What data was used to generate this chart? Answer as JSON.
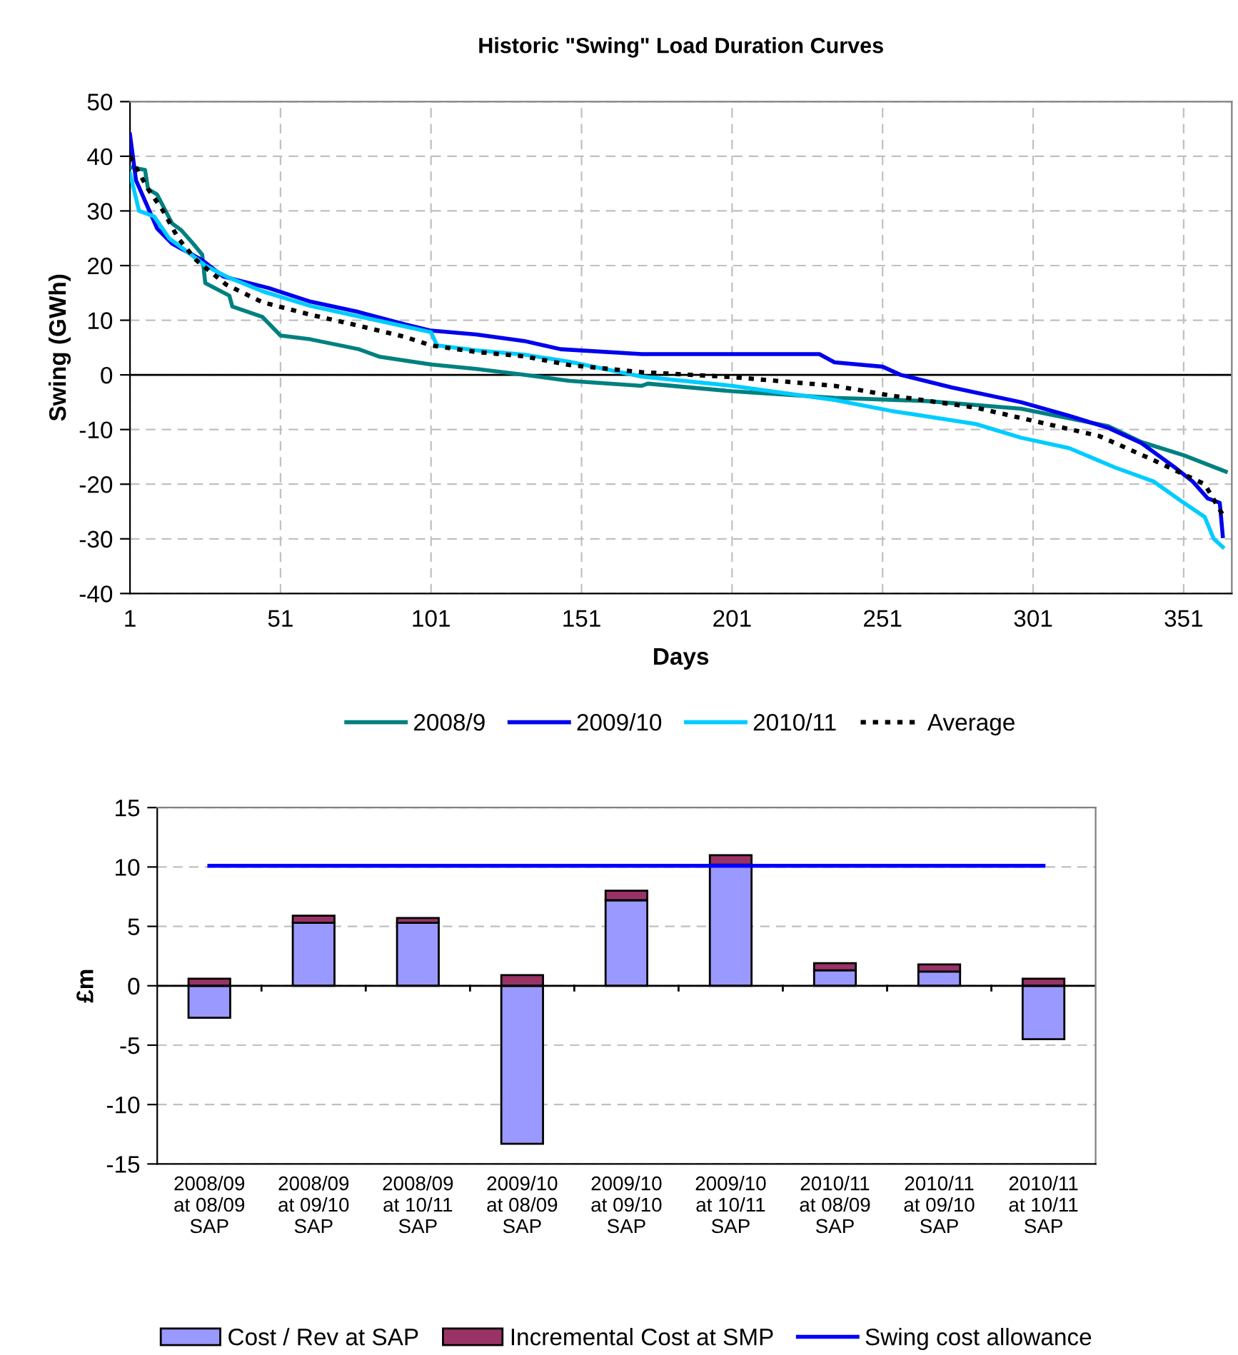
{
  "chart_data": [
    {
      "type": "line",
      "title": "Historic \"Swing\" Load Duration Curves",
      "xlabel": "Days",
      "ylabel": "Swing (GWh)",
      "xlim": [
        1,
        367
      ],
      "xticks": [
        1,
        51,
        101,
        151,
        201,
        251,
        301,
        351
      ],
      "ylim": [
        -40,
        50
      ],
      "yticks": [
        -40,
        -30,
        -20,
        -10,
        0,
        10,
        20,
        30,
        40,
        50
      ],
      "grid": true,
      "legend": "bottom",
      "ref_lines": [
        {
          "axis": "y",
          "value": 0,
          "color": "#000000"
        }
      ],
      "series": [
        {
          "name": "2008/9",
          "color": "#008080",
          "x": [
            1,
            6,
            7,
            10,
            15,
            18,
            22,
            25,
            26,
            34,
            35,
            45,
            51,
            61,
            77,
            84,
            101,
            116,
            132,
            147,
            171,
            173,
            201,
            235,
            266,
            297,
            326,
            337,
            351,
            365
          ],
          "values": [
            38,
            37.5,
            34,
            33,
            27.7,
            26.5,
            24,
            22,
            16.8,
            14.5,
            12.5,
            10.6,
            7.2,
            6.5,
            4.7,
            3.3,
            1.9,
            1.1,
            0,
            -1.1,
            -2,
            -1.6,
            -3,
            -4.2,
            -4.8,
            -6.2,
            -9.4,
            -12.3,
            -14.7,
            -17.7
          ]
        },
        {
          "name": "2009/10",
          "color": "#0000ee",
          "x": [
            1,
            3,
            10,
            15,
            25,
            32,
            47,
            61,
            77,
            92,
            101,
            116,
            132,
            144,
            171,
            230,
            235,
            251,
            257,
            274,
            297,
            313,
            326,
            337,
            348,
            354,
            359,
            363,
            364
          ],
          "values": [
            44,
            35.6,
            26.8,
            24,
            21,
            18,
            15.9,
            13.4,
            11.5,
            9.3,
            8.1,
            7.4,
            6.2,
            4.7,
            3.8,
            3.8,
            2.3,
            1.5,
            0,
            -2.3,
            -5,
            -7.5,
            -9.7,
            -12.5,
            -16.9,
            -19.5,
            -22.6,
            -23.4,
            -29.5
          ]
        },
        {
          "name": "2010/11",
          "color": "#00ccff",
          "x": [
            1,
            4,
            9,
            14,
            22,
            26,
            33,
            45,
            61,
            77,
            92,
            101,
            103,
            116,
            132,
            147,
            171,
            201,
            235,
            254,
            282,
            297,
            313,
            328,
            341,
            350,
            358,
            361,
            364
          ],
          "values": [
            36.9,
            30,
            29,
            25,
            21.7,
            20,
            18,
            15.3,
            12.6,
            10.7,
            8.9,
            7.8,
            5.4,
            4.5,
            3.7,
            2.4,
            -0.3,
            -2,
            -4.6,
            -6.6,
            -9,
            -11.5,
            -13.4,
            -16.9,
            -19.5,
            -23,
            -26,
            -30,
            -31.5
          ]
        },
        {
          "name": "Average",
          "color": "#000000",
          "line_style": "dotted",
          "x": [
            1,
            7,
            12,
            17,
            23,
            33,
            45,
            61,
            77,
            92,
            101,
            116,
            132,
            147,
            171,
            201,
            235,
            254,
            282,
            301,
            323,
            341,
            358,
            364
          ],
          "values": [
            40,
            34,
            30,
            25,
            21,
            16.5,
            13.3,
            11,
            9,
            7,
            5.4,
            4.2,
            3.4,
            1.8,
            0.5,
            -0.4,
            -2,
            -3.8,
            -6,
            -8.4,
            -11.2,
            -15.6,
            -20,
            -25.6
          ]
        }
      ]
    },
    {
      "type": "bar",
      "stacked": true,
      "ylabel": "£m",
      "ylim": [
        -15,
        15
      ],
      "yticks": [
        -15,
        -10,
        -5,
        0,
        5,
        10,
        15
      ],
      "grid": "y",
      "legend": "bottom",
      "ref_lines": [
        {
          "axis": "y",
          "value": 0,
          "color": "#000000"
        }
      ],
      "categories": [
        "2008/09\nat 08/09\nSAP",
        "2008/09\nat 09/10\nSAP",
        "2008/09\nat 10/11\nSAP",
        "2009/10\nat 08/09\nSAP",
        "2009/10\nat 09/10\nSAP",
        "2009/10\nat 10/11\nSAP",
        "2010/11\nat 08/09\nSAP",
        "2010/11\nat 09/10\nSAP",
        "2010/11\nat 10/11\nSAP"
      ],
      "series": [
        {
          "name": "Cost / Rev at SAP",
          "color": "#9999ff",
          "values": [
            -2.7,
            5.3,
            5.3,
            -13.3,
            7.2,
            10.2,
            1.3,
            1.2,
            -4.5
          ]
        },
        {
          "name": "Incremental Cost at SMP",
          "color": "#993366",
          "values": [
            0.6,
            0.6,
            0.4,
            0.9,
            0.8,
            0.8,
            0.6,
            0.6,
            0.6
          ]
        },
        {
          "name": "Swing cost allowance",
          "type": "line",
          "color": "#0000ff",
          "values": [
            10.1,
            10.1,
            10.1,
            10.1,
            10.1,
            10.1,
            10.1,
            10.1,
            10.1
          ]
        }
      ]
    }
  ]
}
